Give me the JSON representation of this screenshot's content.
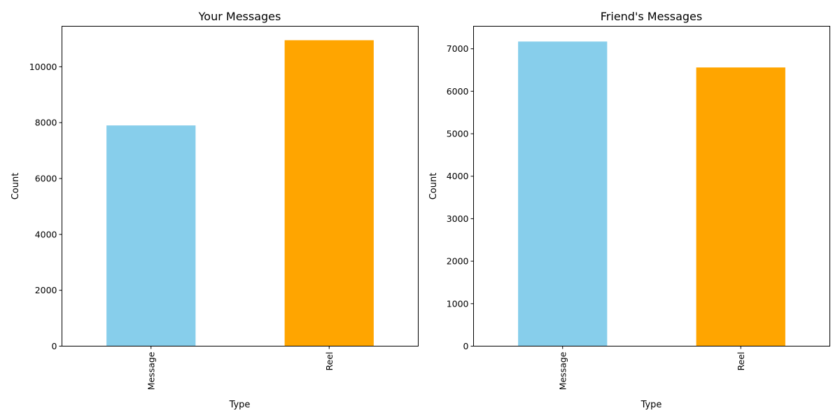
{
  "chart_data": [
    {
      "type": "bar",
      "title": "Your Messages",
      "xlabel": "Type",
      "ylabel": "Count",
      "categories": [
        "Message",
        "Reel"
      ],
      "values": [
        7900,
        10950
      ],
      "colors": [
        "#87CEEB",
        "#FFA500"
      ],
      "ylim": [
        0,
        11450
      ],
      "yticks": [
        0,
        2000,
        4000,
        6000,
        8000,
        10000
      ],
      "grid": false,
      "x_tick_rotation": 90
    },
    {
      "type": "bar",
      "title": "Friend's Messages",
      "xlabel": "Type",
      "ylabel": "Count",
      "categories": [
        "Message",
        "Reel"
      ],
      "values": [
        7170,
        6560
      ],
      "colors": [
        "#87CEEB",
        "#FFA500"
      ],
      "ylim": [
        0,
        7530
      ],
      "yticks": [
        0,
        1000,
        2000,
        3000,
        4000,
        5000,
        6000,
        7000
      ],
      "grid": false,
      "x_tick_rotation": 90
    }
  ]
}
